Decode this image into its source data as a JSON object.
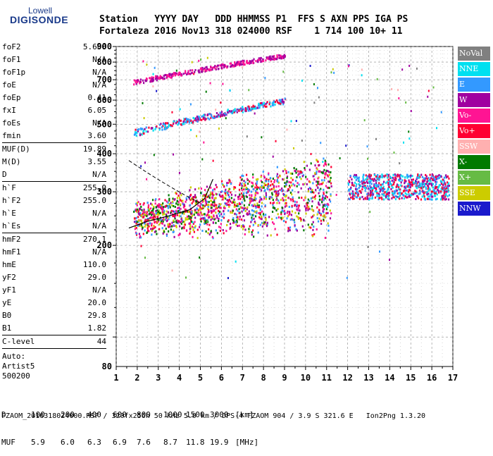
{
  "logo": {
    "top": "Lowell",
    "bottom": "DIGISONDE"
  },
  "header": {
    "line1": "Station   YYYY DAY   DDD HHMMSS P1  FFS S AXN PPS IGA PS",
    "line2": "Fortaleza 2016 Nov13 318 024000 RSF    1 714 100 10+ 11"
  },
  "params": {
    "group1": [
      {
        "name": "foF2",
        "value": "5.600"
      },
      {
        "name": "foF1",
        "value": "N/A"
      },
      {
        "name": "foF1p",
        "value": "N/A"
      },
      {
        "name": "foE",
        "value": "N/A"
      },
      {
        "name": "foEp",
        "value": "0.41"
      },
      {
        "name": "fxI",
        "value": "6.05"
      },
      {
        "name": "foEs",
        "value": "N/A"
      },
      {
        "name": "fmin",
        "value": "3.60"
      }
    ],
    "group2": [
      {
        "name": "MUF(D)",
        "value": "19.89"
      },
      {
        "name": "M(D)",
        "value": "3.55"
      },
      {
        "name": "D",
        "value": "N/A"
      }
    ],
    "group3": [
      {
        "name": "h`F",
        "value": "255.0"
      },
      {
        "name": "h`F2",
        "value": "255.0"
      },
      {
        "name": "h`E",
        "value": "N/A"
      },
      {
        "name": "h`Es",
        "value": "N/A"
      }
    ],
    "group4": [
      {
        "name": "hmF2",
        "value": "270.1"
      },
      {
        "name": "hmF1",
        "value": "N/A"
      },
      {
        "name": "hmE",
        "value": "110.0"
      },
      {
        "name": "yF2",
        "value": "29.0"
      },
      {
        "name": "yF1",
        "value": "N/A"
      },
      {
        "name": "yE",
        "value": "20.0"
      },
      {
        "name": "B0",
        "value": "29.8"
      },
      {
        "name": "B1",
        "value": "1.82"
      }
    ],
    "clevel": {
      "name": "C-level",
      "value": "44"
    },
    "auto": [
      "Auto:",
      "Artist5",
      "500200"
    ]
  },
  "footer": {
    "d_label": "D",
    "d_values": [
      "100",
      "200",
      "400",
      "600",
      "800",
      "1000",
      "1500",
      "3000",
      "[km]"
    ],
    "muf_label": "MUF",
    "muf_values": [
      "5.9",
      "6.0",
      "6.3",
      "6.9",
      "7.6",
      "8.7",
      "11.8",
      "19.9",
      "[MHz]"
    ],
    "file_line": "FZAOM_2016318024000.RSF / 320fx256h 50 kHz 5.0 km / DPS-4 FZAOM 904 / 3.9 S 321.6 E   Ion2Png 1.3.20"
  },
  "legend": [
    {
      "label": "NoVal",
      "color": "#808080"
    },
    {
      "label": "NNE",
      "color": "#00e0f0"
    },
    {
      "label": "E",
      "color": "#3399ff"
    },
    {
      "label": "W",
      "color": "#a000a0"
    },
    {
      "label": "Vo-",
      "color": "#ff1493"
    },
    {
      "label": "Vo+",
      "color": "#ff0033"
    },
    {
      "label": "SSW",
      "color": "#ffb0b0"
    },
    {
      "label": "X-",
      "color": "#007a00"
    },
    {
      "label": "X+",
      "color": "#66bb44"
    },
    {
      "label": "SSE",
      "color": "#cccc00"
    },
    {
      "label": "NNW",
      "color": "#1a1acc"
    }
  ],
  "chart_data": {
    "type": "scatter",
    "xlabel": "",
    "ylabel": "",
    "xlim": [
      1,
      17
    ],
    "ylim": [
      80,
      900
    ],
    "y_scale": "log",
    "x_ticks": [
      "1",
      "2",
      "3",
      "4",
      "5",
      "6",
      "7",
      "8",
      "9",
      "10",
      "11",
      "12",
      "13",
      "14",
      "15",
      "16",
      "17"
    ],
    "y_ticks": [
      "80",
      "200",
      "300",
      "400",
      "500",
      "600",
      "700",
      "800",
      "900"
    ],
    "y_tick_values": [
      80,
      200,
      300,
      400,
      500,
      600,
      700,
      800,
      900
    ],
    "grid": true,
    "series": [
      {
        "name": "NoVal",
        "color": "#808080"
      },
      {
        "name": "NNE",
        "color": "#00e0f0"
      },
      {
        "name": "E",
        "color": "#3399ff"
      },
      {
        "name": "W",
        "color": "#a000a0"
      },
      {
        "name": "Vo-",
        "color": "#ff1493"
      },
      {
        "name": "Vo+",
        "color": "#ff0033"
      },
      {
        "name": "SSW",
        "color": "#ffb0b0"
      },
      {
        "name": "X-",
        "color": "#007a00"
      },
      {
        "name": "X+",
        "color": "#66bb44"
      },
      {
        "name": "SSE",
        "color": "#cccc00"
      },
      {
        "name": "NNW",
        "color": "#1a1acc"
      }
    ],
    "echo_traces": [
      {
        "x_range": [
          1.8,
          11.2
        ],
        "y_range": [
          225,
          330
        ],
        "colors": [
          "#ff0033",
          "#ff1493",
          "#a000a0",
          "#3399ff",
          "#007a00",
          "#cccc00"
        ]
      },
      {
        "x_range": [
          1.8,
          9.0
        ],
        "y_range": [
          470,
          600
        ],
        "colors": [
          "#a000a0",
          "#00e0f0",
          "#ff0033",
          "#3399ff"
        ]
      },
      {
        "x_range": [
          1.8,
          9.0
        ],
        "y_range": [
          690,
          845
        ],
        "colors": [
          "#a000a0",
          "#ff1493"
        ]
      },
      {
        "x_range": [
          12.0,
          16.8
        ],
        "y_range": [
          285,
          345
        ],
        "colors": [
          "#3399ff",
          "#00e0f0",
          "#ff0033",
          "#a000a0"
        ]
      }
    ],
    "model_profile": {
      "x": [
        1.6,
        2.5,
        3.5,
        4.5,
        5.2,
        5.6
      ],
      "y": [
        228,
        240,
        250,
        262,
        285,
        330
      ]
    }
  }
}
